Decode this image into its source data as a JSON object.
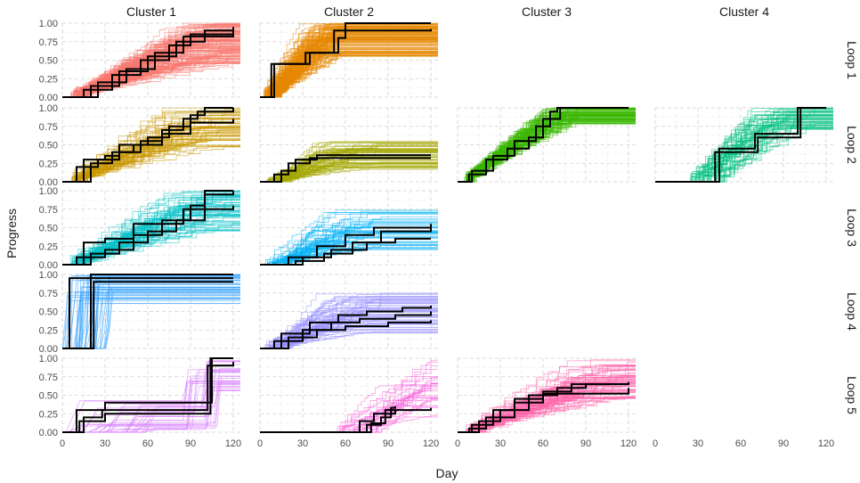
{
  "chart_data": {
    "type": "line",
    "title": "",
    "xlabel": "Day",
    "ylabel": "Progress",
    "xlim": [
      0,
      125
    ],
    "ylim": [
      0,
      1
    ],
    "x_ticks": [
      0,
      30,
      60,
      90,
      120
    ],
    "y_ticks": [
      0,
      0.25,
      0.5,
      0.75,
      1
    ],
    "x_tick_labels": [
      "0",
      "30",
      "60",
      "90",
      "120"
    ],
    "y_tick_labels": [
      "0.00",
      "0.25",
      "0.50",
      "0.75",
      "1.00"
    ],
    "grid": true,
    "legend": "none",
    "facet_columns": [
      "Cluster 1",
      "Cluster 2",
      "Cluster 3",
      "Cluster 4"
    ],
    "facet_rows": [
      "Loop 1",
      "Loop 2",
      "Loop 3",
      "Loop 4",
      "Loop 5"
    ],
    "panels": [
      {
        "row": 0,
        "col": 0,
        "color": "#F8766D",
        "n_lines": 120,
        "pattern": "steady",
        "black": [
          [
            [
              0,
              0
            ],
            [
              20,
              0.15
            ],
            [
              40,
              0.35
            ],
            [
              60,
              0.55
            ],
            [
              80,
              0.75
            ],
            [
              100,
              0.9
            ],
            [
              120,
              0.92
            ]
          ],
          [
            [
              0,
              0
            ],
            [
              15,
              0.1
            ],
            [
              35,
              0.3
            ],
            [
              55,
              0.5
            ],
            [
              75,
              0.7
            ],
            [
              90,
              0.85
            ],
            [
              120,
              0.95
            ]
          ],
          [
            [
              0,
              0
            ],
            [
              25,
              0.2
            ],
            [
              45,
              0.38
            ],
            [
              65,
              0.6
            ],
            [
              85,
              0.82
            ],
            [
              120,
              0.92
            ]
          ]
        ]
      },
      {
        "row": 0,
        "col": 1,
        "color": "#E58700",
        "n_lines": 120,
        "pattern": "early",
        "black": [
          [
            [
              0,
              0
            ],
            [
              5,
              0
            ],
            [
              8,
              0.45
            ],
            [
              20,
              0.45
            ],
            [
              35,
              0.6
            ],
            [
              50,
              0.6
            ],
            [
              55,
              0.8
            ],
            [
              60,
              1.0
            ],
            [
              120,
              1.0
            ]
          ],
          [
            [
              0,
              0
            ],
            [
              8,
              0
            ],
            [
              10,
              0.45
            ],
            [
              28,
              0.45
            ],
            [
              32,
              0.6
            ],
            [
              50,
              0.6
            ],
            [
              52,
              0.9
            ],
            [
              120,
              0.92
            ]
          ]
        ]
      },
      {
        "row": 1,
        "col": 0,
        "color": "#C99800",
        "n_lines": 60,
        "pattern": "steady",
        "black": [
          [
            [
              0,
              0
            ],
            [
              15,
              0.3
            ],
            [
              30,
              0.35
            ],
            [
              40,
              0.5
            ],
            [
              60,
              0.6
            ],
            [
              75,
              0.75
            ],
            [
              90,
              0.9
            ],
            [
              100,
              1.0
            ],
            [
              120,
              1.0
            ]
          ],
          [
            [
              0,
              0
            ],
            [
              10,
              0.2
            ],
            [
              25,
              0.3
            ],
            [
              40,
              0.4
            ],
            [
              55,
              0.55
            ],
            [
              70,
              0.7
            ],
            [
              85,
              0.85
            ],
            [
              95,
              0.95
            ],
            [
              120,
              1.0
            ]
          ],
          [
            [
              0,
              0
            ],
            [
              20,
              0.25
            ],
            [
              35,
              0.4
            ],
            [
              50,
              0.5
            ],
            [
              70,
              0.65
            ],
            [
              90,
              0.8
            ],
            [
              120,
              0.85
            ]
          ]
        ]
      },
      {
        "row": 1,
        "col": 1,
        "color": "#A3A500",
        "n_lines": 60,
        "pattern": "plateau",
        "black": [
          [
            [
              0,
              0
            ],
            [
              15,
              0.15
            ],
            [
              25,
              0.3
            ],
            [
              40,
              0.36
            ],
            [
              120,
              0.36
            ]
          ],
          [
            [
              0,
              0
            ],
            [
              10,
              0.1
            ],
            [
              20,
              0.25
            ],
            [
              35,
              0.32
            ],
            [
              120,
              0.32
            ]
          ]
        ]
      },
      {
        "row": 1,
        "col": 2,
        "color": "#39B600",
        "n_lines": 80,
        "pattern": "fast",
        "black": [
          [
            [
              0,
              0
            ],
            [
              10,
              0.15
            ],
            [
              25,
              0.35
            ],
            [
              40,
              0.55
            ],
            [
              55,
              0.75
            ],
            [
              65,
              0.95
            ],
            [
              70,
              1.0
            ],
            [
              120,
              1.0
            ]
          ],
          [
            [
              0,
              0
            ],
            [
              8,
              0.1
            ],
            [
              20,
              0.3
            ],
            [
              35,
              0.45
            ],
            [
              50,
              0.6
            ],
            [
              60,
              0.85
            ],
            [
              72,
              1.0
            ],
            [
              120,
              1.0
            ]
          ]
        ]
      },
      {
        "row": 1,
        "col": 3,
        "color": "#00BF7D",
        "n_lines": 50,
        "pattern": "late",
        "black": [
          [
            [
              0,
              0
            ],
            [
              40,
              0
            ],
            [
              45,
              0.45
            ],
            [
              65,
              0.45
            ],
            [
              70,
              0.65
            ],
            [
              95,
              0.65
            ],
            [
              100,
              1.0
            ],
            [
              120,
              1.0
            ]
          ],
          [
            [
              0,
              0
            ],
            [
              38,
              0
            ],
            [
              42,
              0.4
            ],
            [
              68,
              0.4
            ],
            [
              72,
              0.6
            ],
            [
              98,
              0.6
            ],
            [
              102,
              1.0
            ],
            [
              120,
              1.0
            ]
          ]
        ]
      },
      {
        "row": 2,
        "col": 0,
        "color": "#00BFC4",
        "n_lines": 60,
        "pattern": "steady",
        "black": [
          [
            [
              0,
              0
            ],
            [
              15,
              0.3
            ],
            [
              30,
              0.35
            ],
            [
              50,
              0.55
            ],
            [
              70,
              0.6
            ],
            [
              90,
              0.8
            ],
            [
              100,
              1.0
            ],
            [
              120,
              1.0
            ]
          ],
          [
            [
              0,
              0
            ],
            [
              10,
              0.1
            ],
            [
              30,
              0.2
            ],
            [
              50,
              0.4
            ],
            [
              70,
              0.55
            ],
            [
              85,
              0.75
            ],
            [
              100,
              0.95
            ],
            [
              120,
              1.0
            ]
          ],
          [
            [
              0,
              0
            ],
            [
              20,
              0.15
            ],
            [
              40,
              0.3
            ],
            [
              60,
              0.45
            ],
            [
              80,
              0.6
            ],
            [
              100,
              0.75
            ],
            [
              120,
              0.8
            ]
          ]
        ]
      },
      {
        "row": 2,
        "col": 1,
        "color": "#00B0F6",
        "n_lines": 50,
        "pattern": "plateau",
        "black": [
          [
            [
              0,
              0
            ],
            [
              20,
              0.1
            ],
            [
              40,
              0.25
            ],
            [
              60,
              0.4
            ],
            [
              80,
              0.5
            ],
            [
              120,
              0.55
            ]
          ],
          [
            [
              0,
              0
            ],
            [
              25,
              0.05
            ],
            [
              45,
              0.15
            ],
            [
              65,
              0.3
            ],
            [
              85,
              0.45
            ],
            [
              120,
              0.5
            ]
          ],
          [
            [
              0,
              0
            ],
            [
              30,
              0.1
            ],
            [
              50,
              0.2
            ],
            [
              75,
              0.3
            ],
            [
              95,
              0.35
            ],
            [
              120,
              0.35
            ]
          ]
        ]
      },
      {
        "row": 3,
        "col": 0,
        "color": "#35A2FF",
        "n_lines": 50,
        "pattern": "burst",
        "black": [
          [
            [
              0,
              0
            ],
            [
              3,
              0
            ],
            [
              5,
              0.95
            ],
            [
              120,
              0.95
            ]
          ],
          [
            [
              0,
              0
            ],
            [
              18,
              0
            ],
            [
              20,
              1.0
            ],
            [
              120,
              1.0
            ]
          ],
          [
            [
              0,
              0
            ],
            [
              21,
              0
            ],
            [
              22,
              0.9
            ],
            [
              120,
              0.9
            ]
          ]
        ]
      },
      {
        "row": 3,
        "col": 1,
        "color": "#9590FF",
        "n_lines": 60,
        "pattern": "plateau",
        "black": [
          [
            [
              0,
              0
            ],
            [
              15,
              0.2
            ],
            [
              35,
              0.35
            ],
            [
              55,
              0.45
            ],
            [
              75,
              0.5
            ],
            [
              100,
              0.55
            ],
            [
              120,
              0.58
            ]
          ],
          [
            [
              0,
              0
            ],
            [
              10,
              0.1
            ],
            [
              30,
              0.25
            ],
            [
              50,
              0.35
            ],
            [
              70,
              0.4
            ],
            [
              95,
              0.45
            ],
            [
              120,
              0.5
            ]
          ],
          [
            [
              0,
              0
            ],
            [
              20,
              0.15
            ],
            [
              40,
              0.25
            ],
            [
              60,
              0.3
            ],
            [
              90,
              0.35
            ],
            [
              120,
              0.38
            ]
          ]
        ]
      },
      {
        "row": 4,
        "col": 0,
        "color": "#D575FE",
        "n_lines": 30,
        "pattern": "latejump",
        "black": [
          [
            [
              0,
              0
            ],
            [
              10,
              0.3
            ],
            [
              25,
              0.3
            ],
            [
              30,
              0.4
            ],
            [
              100,
              0.4
            ],
            [
              105,
              1.0
            ],
            [
              120,
              1.0
            ]
          ],
          [
            [
              0,
              0
            ],
            [
              15,
              0.2
            ],
            [
              28,
              0.3
            ],
            [
              95,
              0.3
            ],
            [
              102,
              0.9
            ],
            [
              120,
              0.95
            ]
          ],
          [
            [
              0,
              0
            ],
            [
              12,
              0.15
            ],
            [
              30,
              0.25
            ],
            [
              98,
              0.25
            ],
            [
              104,
              1.0
            ],
            [
              120,
              1.0
            ]
          ]
        ]
      },
      {
        "row": 4,
        "col": 1,
        "color": "#F962DD",
        "n_lines": 30,
        "pattern": "late",
        "black": [
          [
            [
              0,
              0
            ],
            [
              60,
              0
            ],
            [
              70,
              0.15
            ],
            [
              80,
              0.25
            ],
            [
              88,
              0.3
            ],
            [
              120,
              0.33
            ]
          ],
          [
            [
              0,
              0
            ],
            [
              65,
              0
            ],
            [
              75,
              0.1
            ],
            [
              85,
              0.2
            ],
            [
              92,
              0.33
            ],
            [
              95,
              0.35
            ]
          ],
          [
            [
              0,
              0
            ],
            [
              68,
              0
            ],
            [
              78,
              0.12
            ],
            [
              88,
              0.25
            ],
            [
              95,
              0.3
            ]
          ]
        ]
      },
      {
        "row": 4,
        "col": 2,
        "color": "#FF65AC",
        "n_lines": 70,
        "pattern": "steady",
        "black": [
          [
            [
              0,
              0
            ],
            [
              10,
              0.1
            ],
            [
              25,
              0.3
            ],
            [
              40,
              0.45
            ],
            [
              60,
              0.55
            ],
            [
              80,
              0.65
            ],
            [
              120,
              0.68
            ]
          ],
          [
            [
              0,
              0
            ],
            [
              15,
              0.15
            ],
            [
              30,
              0.3
            ],
            [
              50,
              0.5
            ],
            [
              70,
              0.6
            ],
            [
              90,
              0.65
            ],
            [
              120,
              0.65
            ]
          ],
          [
            [
              0,
              0
            ],
            [
              8,
              0.05
            ],
            [
              20,
              0.2
            ],
            [
              40,
              0.4
            ],
            [
              60,
              0.52
            ],
            [
              120,
              0.6
            ]
          ]
        ]
      }
    ]
  }
}
